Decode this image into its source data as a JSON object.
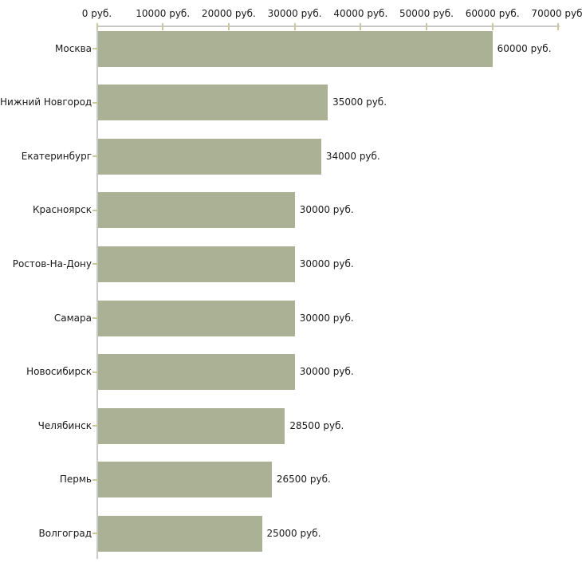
{
  "chart_data": {
    "type": "bar",
    "orientation": "horizontal",
    "title": "",
    "xlabel": "",
    "ylabel": "",
    "categories": [
      "Москва",
      "Нижний Новгород",
      "Екатеринбург",
      "Красноярск",
      "Ростов-На-Дону",
      "Самара",
      "Новосибирск",
      "Челябинск",
      "Пермь",
      "Волгоград"
    ],
    "values": [
      60000,
      35000,
      34000,
      30000,
      30000,
      30000,
      30000,
      28500,
      26500,
      25000
    ],
    "value_labels": [
      "60000 руб.",
      "35000 руб.",
      "34000 руб.",
      "30000 руб.",
      "30000 руб.",
      "30000 руб.",
      "30000 руб.",
      "28500 руб.",
      "26500 руб.",
      "25000 руб."
    ],
    "x_axis": {
      "position": "top",
      "range": [
        0,
        70000
      ],
      "tick_values": [
        0,
        10000,
        20000,
        30000,
        40000,
        50000,
        60000,
        70000
      ],
      "tick_labels": [
        "0 руб.",
        "10000 руб.",
        "20000 руб.",
        "30000 руб.",
        "40000 руб.",
        "50000 руб.",
        "60000 руб.",
        "70000 руб."
      ]
    },
    "grid": false,
    "legend": false,
    "colors": {
      "bar": "#aab194",
      "axis_line": "#c9c9c9",
      "tick_mark": "#cac89e",
      "text": "#1a1a1a",
      "background": "#ffffff"
    }
  }
}
